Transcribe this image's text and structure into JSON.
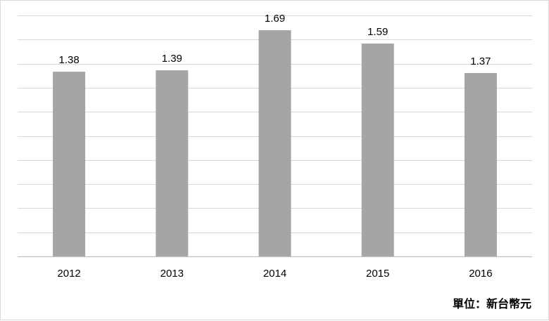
{
  "chart_data": {
    "type": "bar",
    "categories": [
      "2012",
      "2013",
      "2014",
      "2015",
      "2016"
    ],
    "values": [
      1.38,
      1.39,
      1.69,
      1.59,
      1.37
    ],
    "data_labels": [
      "1.38",
      "1.39",
      "1.69",
      "1.59",
      "1.37"
    ],
    "ylim": [
      0,
      1.8
    ],
    "grid": true,
    "bar_color": "#a5a5a5",
    "gridline_count": 10,
    "unit_note": "單位：新台幣元"
  }
}
